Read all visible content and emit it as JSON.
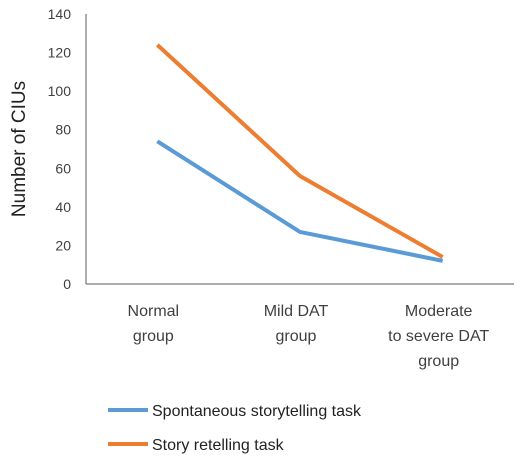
{
  "chart_data": {
    "type": "line",
    "categories": [
      [
        "Normal",
        "group"
      ],
      [
        "Mild DAT",
        "group"
      ],
      [
        "Moderate",
        "to severe DAT",
        "group"
      ]
    ],
    "series": [
      {
        "name": "Spontaneous storytelling task",
        "color": "#5B9BD5",
        "values": [
          74,
          27,
          12
        ]
      },
      {
        "name": "Story retelling task",
        "color": "#ED7D31",
        "values": [
          124,
          56,
          14
        ]
      }
    ],
    "ylabel": "Number of CIUs",
    "ylim": [
      0,
      140
    ],
    "yticks": [
      "0",
      "20",
      "40",
      "60",
      "80",
      "100",
      "120",
      "140"
    ],
    "grid": false,
    "legend_position": "bottom"
  }
}
